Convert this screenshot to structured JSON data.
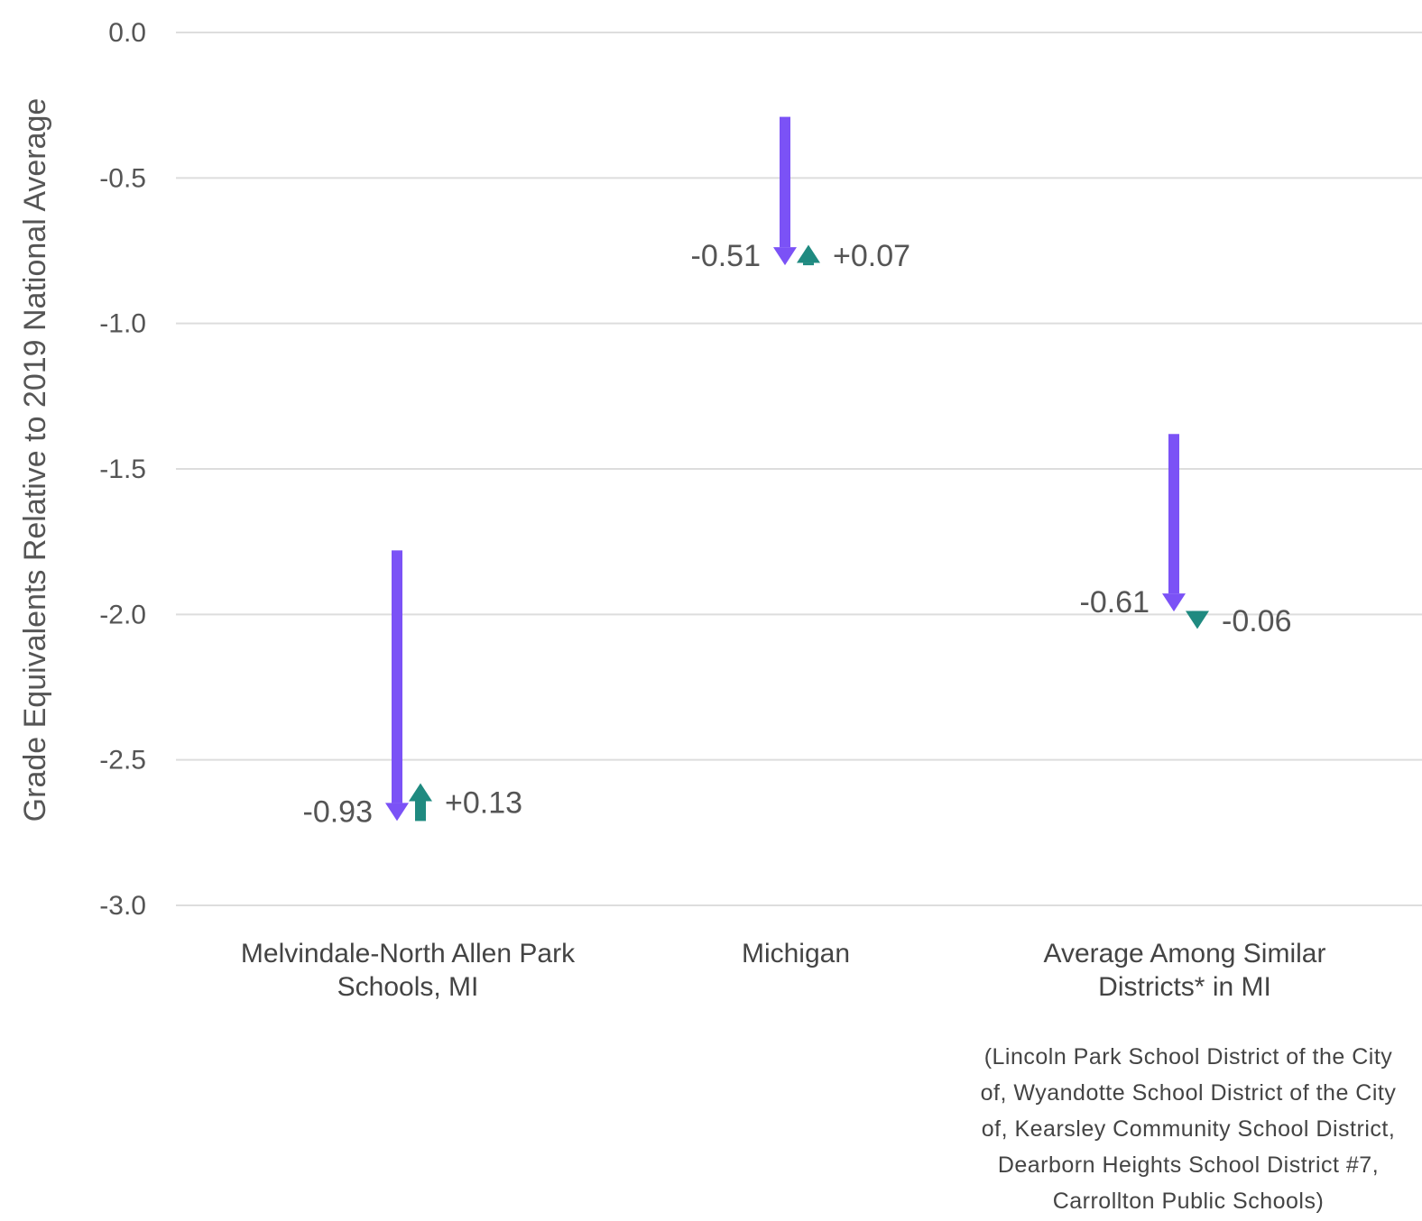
{
  "chart_data": {
    "type": "arrow",
    "ylabel": "Grade Equivalents Relative to 2019 National Average",
    "ylim": [
      -3.0,
      0.0
    ],
    "yticks": [
      0.0,
      -0.5,
      -1.0,
      -1.5,
      -2.0,
      -2.5,
      -3.0
    ],
    "ytick_labels": [
      "0.0",
      "-0.5",
      "-1.0",
      "-1.5",
      "-2.0",
      "-2.5",
      "-3.0"
    ],
    "grid": true,
    "categories": [
      {
        "label_lines": [
          "Melvindale-North Allen Park",
          "Schools, MI"
        ]
      },
      {
        "label_lines": [
          "Michigan"
        ]
      },
      {
        "label_lines": [
          "Average Among Similar",
          "Districts* in MI"
        ]
      }
    ],
    "series": [
      {
        "color": "#7b52f6",
        "start": [
          -1.78,
          -0.29,
          -1.38
        ],
        "end": [
          -2.71,
          -0.8,
          -1.99
        ],
        "labels": [
          "-0.93",
          "-0.51",
          "-0.61"
        ]
      },
      {
        "color": "#1f8a80",
        "start": [
          -2.71,
          -0.8,
          -1.99
        ],
        "end": [
          -2.58,
          -0.73,
          -2.05
        ],
        "labels": [
          "+0.13",
          "+0.07",
          "-0.06"
        ]
      }
    ],
    "footnote_lines": [
      "(Lincoln Park School District of the City",
      "of, Wyandotte School District of the City",
      "of, Kearsley Community School District,",
      "Dearborn Heights School District #7,",
      "Carrollton Public Schools)"
    ]
  }
}
